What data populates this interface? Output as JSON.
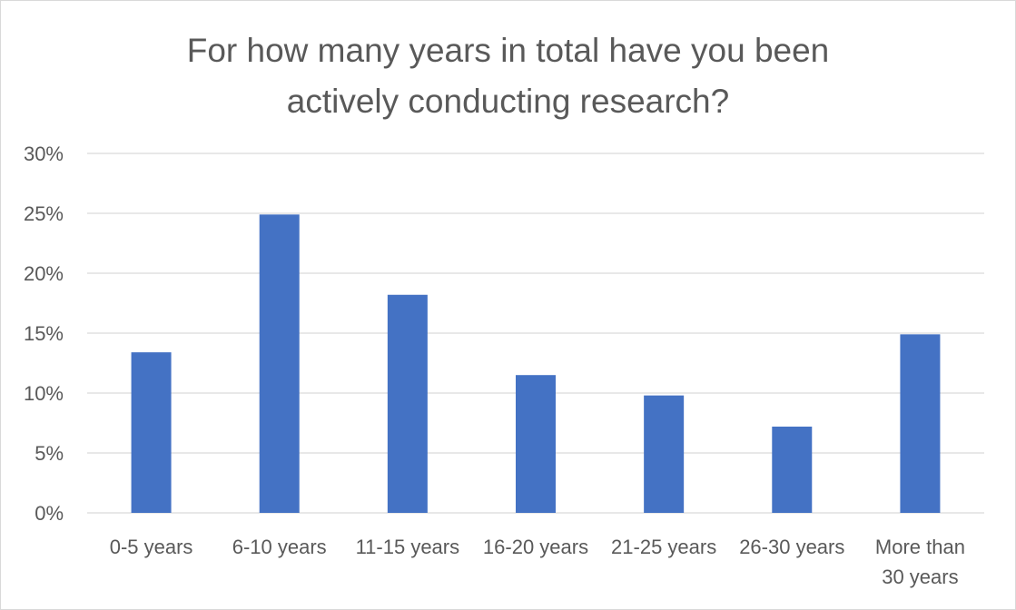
{
  "chart_data": {
    "type": "bar",
    "title_lines": [
      "For how many years in total have you been",
      "actively conducting research?"
    ],
    "categories": [
      [
        "0-5 years"
      ],
      [
        "6-10 years"
      ],
      [
        "11-15 years"
      ],
      [
        "16-20 years"
      ],
      [
        "21-25 years"
      ],
      [
        "26-30 years"
      ],
      [
        "More than",
        "30 years"
      ]
    ],
    "values": [
      13.4,
      24.9,
      18.2,
      11.5,
      9.8,
      7.2,
      14.9
    ],
    "ylim": [
      0,
      30
    ],
    "yticks": [
      "0%",
      "5%",
      "10%",
      "15%",
      "20%",
      "25%",
      "30%"
    ],
    "grid": true,
    "colors": {
      "bar": "#4472C4",
      "grid": "#d9d9d9",
      "text": "#595959"
    }
  }
}
